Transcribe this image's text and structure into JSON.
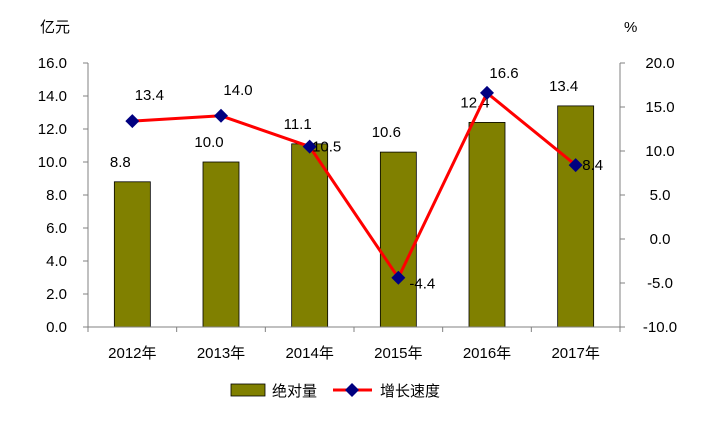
{
  "colors": {
    "bar": "#808000",
    "bar_stroke": "#000000",
    "line": "#ff0000",
    "marker": "#000080",
    "axis": "#808080"
  },
  "chart_data": {
    "type": "bar",
    "categories": [
      "2012年",
      "2013年",
      "2014年",
      "2015年",
      "2016年",
      "2017年"
    ],
    "series": [
      {
        "name": "绝对量",
        "type": "bar",
        "axis": "left",
        "values": [
          8.8,
          10.0,
          11.1,
          10.6,
          12.4,
          13.4
        ],
        "labels": [
          "8.8",
          "10.0",
          "11.1",
          "10.6",
          "12.4",
          "13.4"
        ]
      },
      {
        "name": "增长速度",
        "type": "line",
        "axis": "right",
        "values": [
          13.4,
          14.0,
          10.5,
          -4.4,
          16.6,
          8.4
        ],
        "labels": [
          "13.4",
          "14.0",
          "10.5",
          "-4.4",
          "16.6",
          "8.4"
        ]
      }
    ],
    "y_left": {
      "unit": "亿元",
      "ylim": [
        0,
        16
      ],
      "ticks": [
        "0.0",
        "2.0",
        "4.0",
        "6.0",
        "8.0",
        "10.0",
        "12.0",
        "14.0",
        "16.0"
      ]
    },
    "y_right": {
      "unit": "%",
      "ylim": [
        -10,
        20
      ],
      "ticks": [
        "-10.0",
        "-5.0",
        "0.0",
        "5.0",
        "10.0",
        "15.0",
        "20.0"
      ]
    },
    "grid": false,
    "legend_position": "bottom"
  }
}
